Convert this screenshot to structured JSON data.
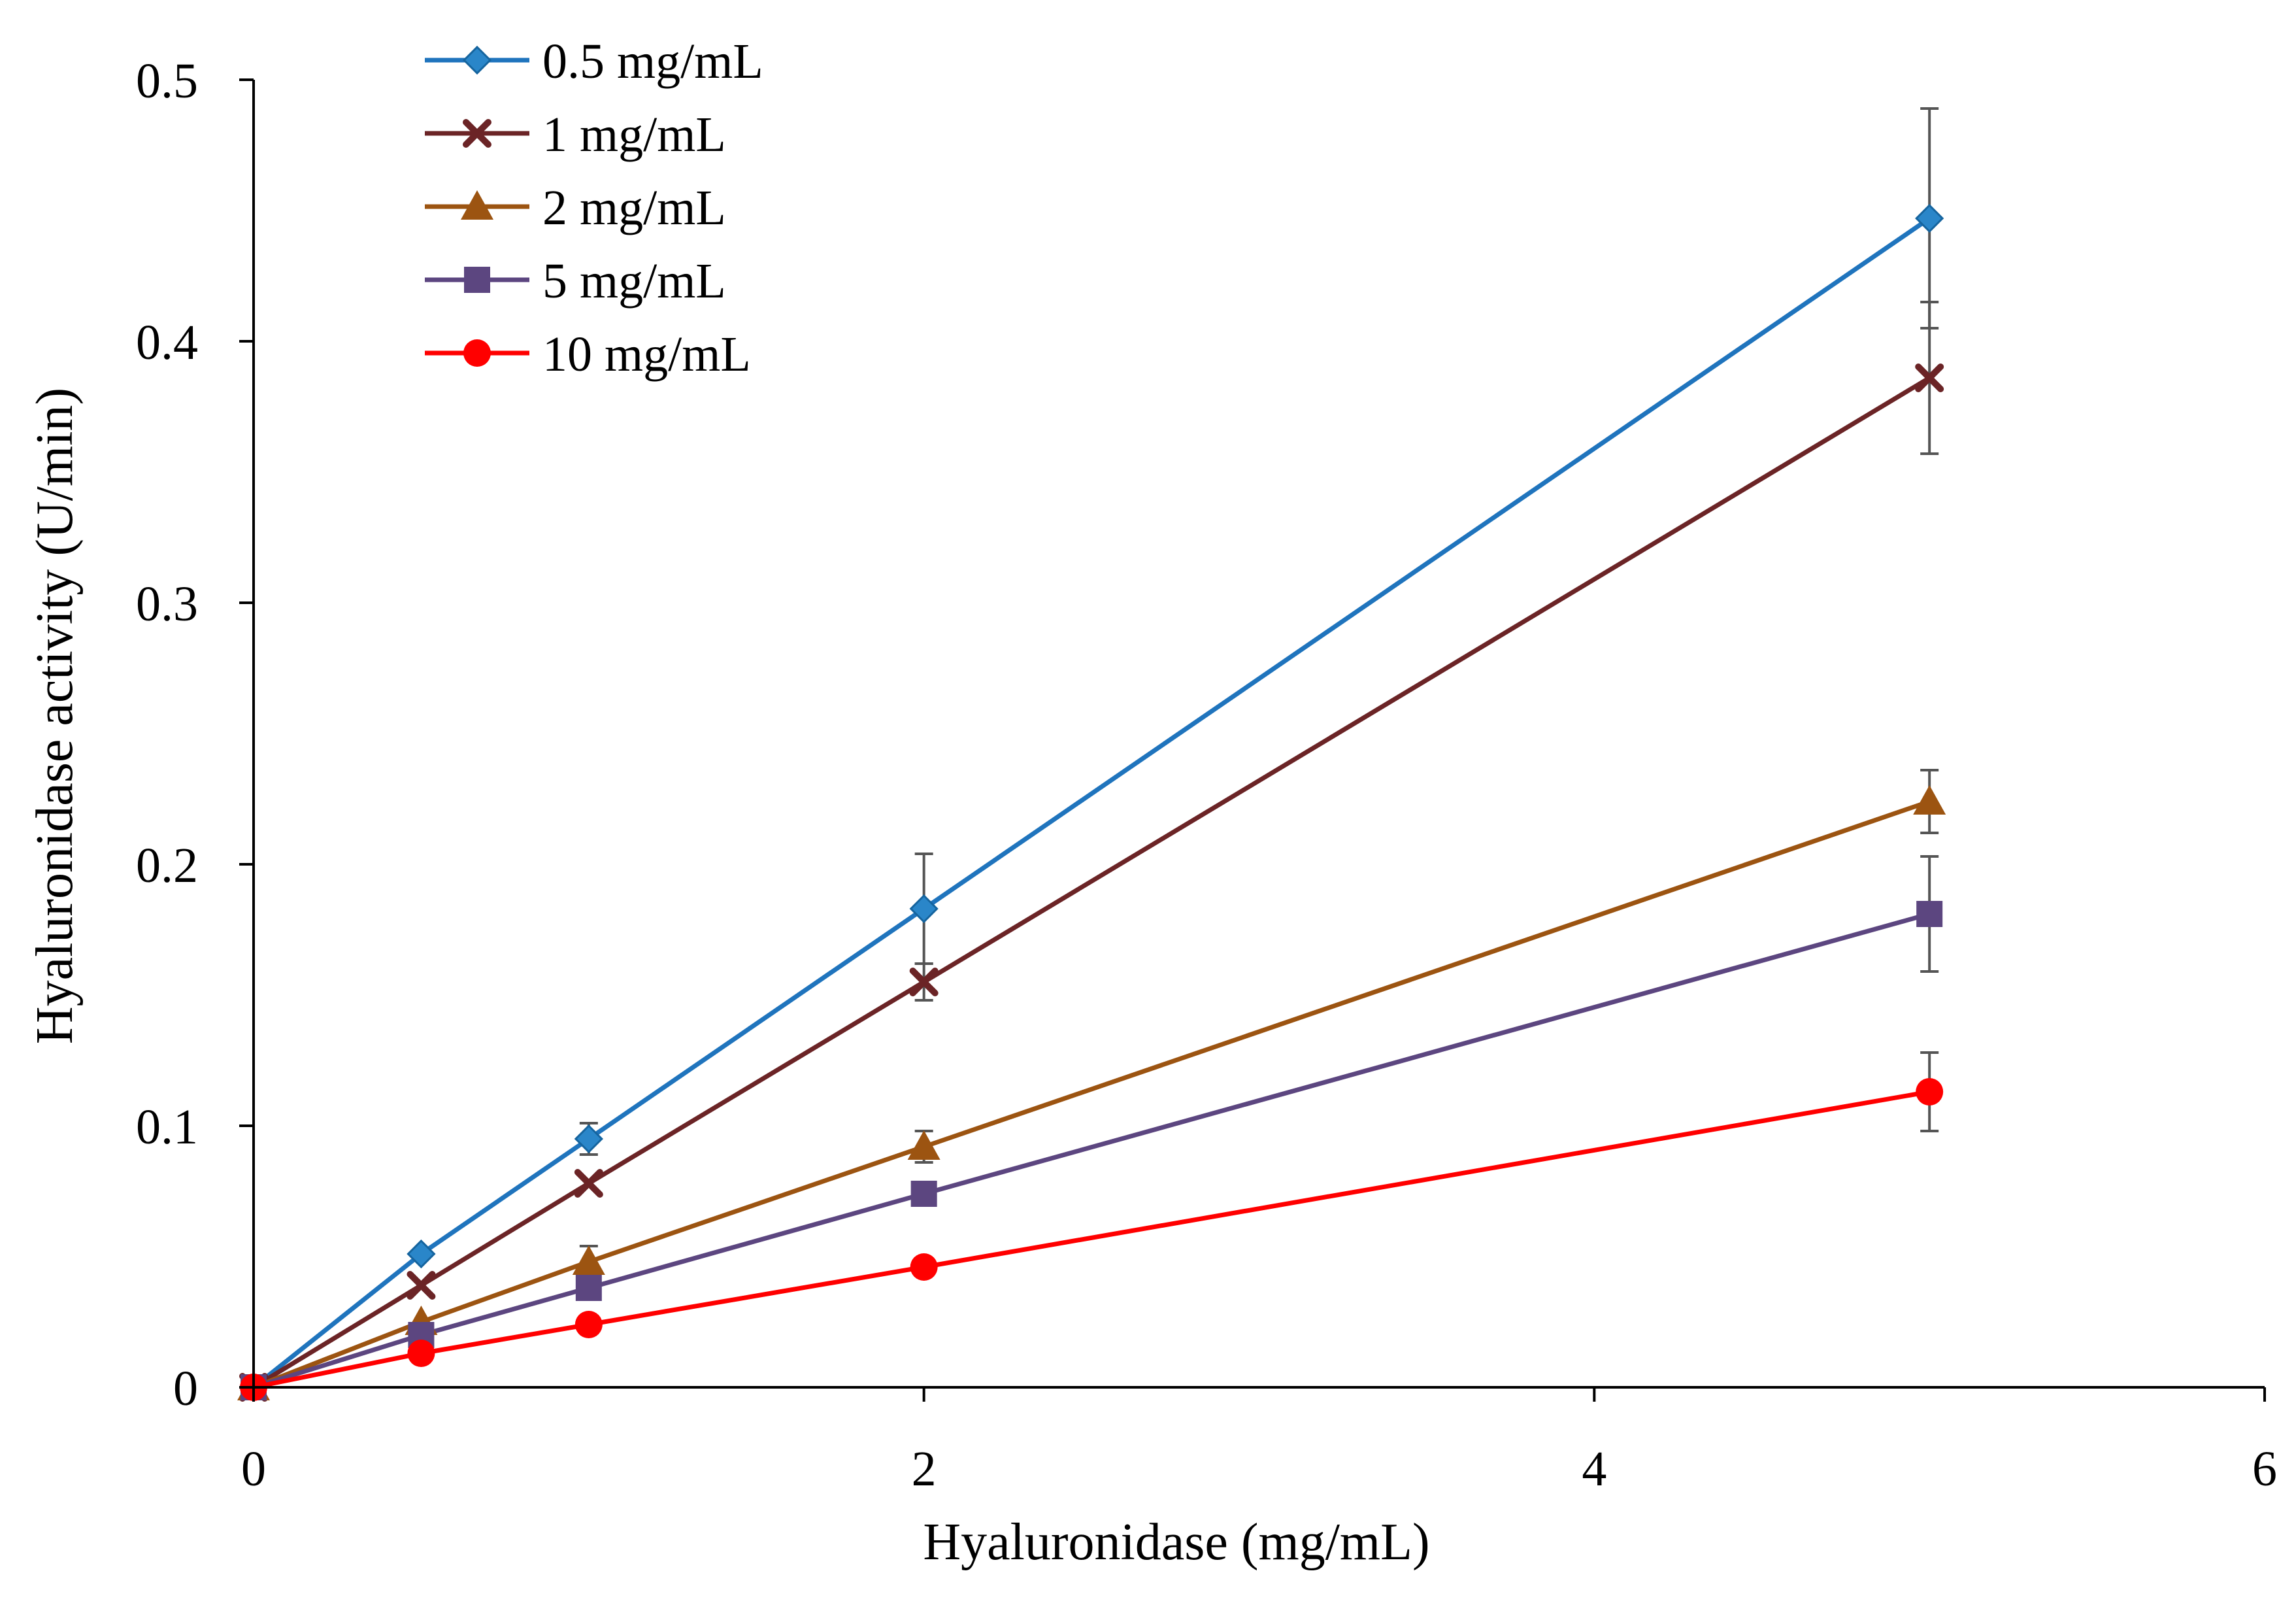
{
  "chart_data": {
    "type": "line",
    "title": "",
    "xlabel": "Hyaluronidase (mg/mL)",
    "ylabel": "Hyaluronidase activity (U/min)",
    "xlim": [
      0,
      6
    ],
    "ylim": [
      0,
      0.5
    ],
    "xticks": [
      0,
      2,
      4,
      6
    ],
    "yticks": [
      0,
      0.1,
      0.2,
      0.3,
      0.4,
      0.5
    ],
    "xtick_labels": [
      "0",
      "2",
      "4",
      "6"
    ],
    "ytick_labels": [
      "0",
      "0.1",
      "0.2",
      "0.3",
      "0.4",
      "0.5"
    ],
    "grid": false,
    "legend_position": "top-left",
    "x": [
      0,
      0.5,
      1,
      2,
      5
    ],
    "series": [
      {
        "name": "0.5 mg/mL",
        "color": "#1f74bd",
        "marker": "diamond",
        "values": [
          0,
          0.051,
          0.095,
          0.183,
          0.447
        ],
        "errors": [
          0,
          0.002,
          0.006,
          0.021,
          0.042
        ]
      },
      {
        "name": "1 mg/mL",
        "color": "#6b2426",
        "marker": "x",
        "values": [
          0,
          0.039,
          0.078,
          0.155,
          0.386
        ],
        "errors": [
          0,
          0.002,
          0.003,
          0.007,
          0.029
        ]
      },
      {
        "name": "2 mg/mL",
        "color": "#9c5411",
        "marker": "triangle",
        "values": [
          0,
          0.025,
          0.048,
          0.092,
          0.224
        ],
        "errors": [
          0,
          0.002,
          0.006,
          0.006,
          0.012
        ]
      },
      {
        "name": "5 mg/mL",
        "color": "#5c4680",
        "marker": "square",
        "values": [
          0,
          0.02,
          0.038,
          0.074,
          0.181
        ],
        "errors": [
          0,
          0.001,
          0.003,
          0.003,
          0.022
        ]
      },
      {
        "name": "10 mg/mL",
        "color": "#ff0000",
        "marker": "circle",
        "values": [
          0,
          0.013,
          0.024,
          0.046,
          0.113
        ],
        "errors": [
          0,
          0.001,
          0.002,
          0.003,
          0.015
        ]
      }
    ]
  }
}
